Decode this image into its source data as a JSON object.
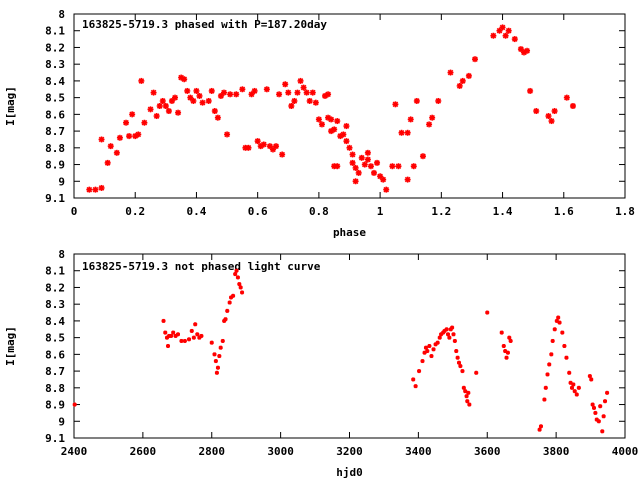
{
  "chart_data": [
    {
      "type": "scatter",
      "title": "163825-5719.3 phased with P=187.20day",
      "xlabel": "phase",
      "ylabel": "I[mag]",
      "xlim": [
        0,
        1.8
      ],
      "ylim": [
        9.1,
        8.0
      ],
      "y_inverted": true,
      "grid": false,
      "marker_color": "#ff0000",
      "x_ticks": [
        "0",
        "0.2",
        "0.4",
        "0.6",
        "0.8",
        "1",
        "1.2",
        "1.4",
        "1.6",
        "1.8"
      ],
      "y_ticks": [
        "8",
        "8.1",
        "8.2",
        "8.3",
        "8.4",
        "8.5",
        "8.6",
        "8.7",
        "8.8",
        "8.9",
        "9",
        "9.1"
      ],
      "series": [
        {
          "points": [
            [
              0.05,
              9.05
            ],
            [
              0.07,
              9.05
            ],
            [
              0.09,
              9.04
            ],
            [
              0.09,
              8.75
            ],
            [
              0.11,
              8.89
            ],
            [
              0.12,
              8.79
            ],
            [
              0.14,
              8.83
            ],
            [
              0.15,
              8.74
            ],
            [
              0.17,
              8.65
            ],
            [
              0.18,
              8.73
            ],
            [
              0.19,
              8.6
            ],
            [
              0.2,
              8.73
            ],
            [
              0.21,
              8.72
            ],
            [
              0.22,
              8.4
            ],
            [
              0.23,
              8.65
            ],
            [
              0.25,
              8.57
            ],
            [
              0.26,
              8.47
            ],
            [
              0.27,
              8.61
            ],
            [
              0.28,
              8.55
            ],
            [
              0.29,
              8.52
            ],
            [
              0.3,
              8.55
            ],
            [
              0.31,
              8.58
            ],
            [
              0.32,
              8.52
            ],
            [
              0.33,
              8.5
            ],
            [
              0.34,
              8.59
            ],
            [
              0.35,
              8.38
            ],
            [
              0.36,
              8.39
            ],
            [
              0.37,
              8.46
            ],
            [
              0.38,
              8.5
            ],
            [
              0.39,
              8.52
            ],
            [
              0.4,
              8.46
            ],
            [
              0.41,
              8.49
            ],
            [
              0.42,
              8.53
            ],
            [
              0.44,
              8.52
            ],
            [
              0.45,
              8.46
            ],
            [
              0.46,
              8.58
            ],
            [
              0.47,
              8.62
            ],
            [
              0.48,
              8.49
            ],
            [
              0.49,
              8.47
            ],
            [
              0.5,
              8.72
            ],
            [
              0.51,
              8.48
            ],
            [
              0.53,
              8.48
            ],
            [
              0.55,
              8.45
            ],
            [
              0.56,
              8.8
            ],
            [
              0.57,
              8.8
            ],
            [
              0.58,
              8.48
            ],
            [
              0.59,
              8.46
            ],
            [
              0.6,
              8.76
            ],
            [
              0.61,
              8.79
            ],
            [
              0.62,
              8.78
            ],
            [
              0.63,
              8.45
            ],
            [
              0.64,
              8.79
            ],
            [
              0.65,
              8.81
            ],
            [
              0.66,
              8.79
            ],
            [
              0.67,
              8.48
            ],
            [
              0.68,
              8.84
            ],
            [
              0.69,
              8.42
            ],
            [
              0.7,
              8.47
            ],
            [
              0.71,
              8.55
            ],
            [
              0.72,
              8.52
            ],
            [
              0.73,
              8.47
            ],
            [
              0.74,
              8.4
            ],
            [
              0.75,
              8.44
            ],
            [
              0.76,
              8.47
            ],
            [
              0.77,
              8.52
            ],
            [
              0.78,
              8.47
            ],
            [
              0.79,
              8.53
            ],
            [
              0.8,
              8.63
            ],
            [
              0.81,
              8.66
            ],
            [
              0.82,
              8.49
            ],
            [
              0.83,
              8.48
            ],
            [
              0.83,
              8.62
            ],
            [
              0.84,
              8.7
            ],
            [
              0.84,
              8.63
            ],
            [
              0.85,
              8.69
            ],
            [
              0.85,
              8.91
            ],
            [
              0.86,
              8.91
            ],
            [
              0.86,
              8.64
            ],
            [
              0.87,
              8.73
            ],
            [
              0.88,
              8.72
            ],
            [
              0.89,
              8.67
            ],
            [
              0.89,
              8.76
            ],
            [
              0.9,
              8.8
            ],
            [
              0.91,
              8.89
            ],
            [
              0.91,
              8.84
            ],
            [
              0.92,
              8.92
            ],
            [
              0.92,
              9.0
            ],
            [
              0.93,
              8.95
            ],
            [
              0.94,
              8.86
            ],
            [
              0.95,
              8.9
            ],
            [
              0.96,
              8.83
            ],
            [
              0.96,
              8.87
            ],
            [
              0.97,
              8.91
            ],
            [
              0.98,
              8.95
            ],
            [
              0.99,
              8.89
            ],
            [
              1.0,
              8.97
            ],
            [
              1.01,
              8.99
            ],
            [
              1.02,
              9.05
            ],
            [
              1.04,
              8.91
            ],
            [
              1.05,
              8.54
            ],
            [
              1.06,
              8.91
            ],
            [
              1.07,
              8.71
            ],
            [
              1.09,
              8.99
            ],
            [
              1.09,
              8.71
            ],
            [
              1.1,
              8.63
            ],
            [
              1.11,
              8.91
            ],
            [
              1.12,
              8.52
            ],
            [
              1.14,
              8.85
            ],
            [
              1.16,
              8.66
            ],
            [
              1.17,
              8.62
            ],
            [
              1.19,
              8.52
            ],
            [
              1.23,
              8.35
            ],
            [
              1.26,
              8.43
            ],
            [
              1.27,
              8.4
            ],
            [
              1.29,
              8.37
            ],
            [
              1.31,
              8.27
            ],
            [
              1.37,
              8.13
            ],
            [
              1.39,
              8.1
            ],
            [
              1.4,
              8.08
            ],
            [
              1.41,
              8.13
            ],
            [
              1.42,
              8.1
            ],
            [
              1.44,
              8.15
            ],
            [
              1.46,
              8.21
            ],
            [
              1.47,
              8.23
            ],
            [
              1.48,
              8.22
            ],
            [
              1.49,
              8.46
            ],
            [
              1.51,
              8.58
            ],
            [
              1.55,
              8.61
            ],
            [
              1.56,
              8.64
            ],
            [
              1.57,
              8.58
            ],
            [
              1.61,
              8.5
            ],
            [
              1.63,
              8.55
            ]
          ]
        }
      ]
    },
    {
      "type": "scatter",
      "title": "163825-5719.3 not phased light curve",
      "xlabel": "hjd0",
      "ylabel": "I[mag]",
      "xlim": [
        2400,
        4000
      ],
      "ylim": [
        9.1,
        8.0
      ],
      "y_inverted": true,
      "grid": false,
      "marker_color": "#ff0000",
      "x_ticks": [
        "2400",
        "2600",
        "2800",
        "3000",
        "3200",
        "3400",
        "3600",
        "3800",
        "4000"
      ],
      "y_ticks": [
        "8",
        "8.1",
        "8.2",
        "8.3",
        "8.4",
        "8.5",
        "8.6",
        "8.7",
        "8.8",
        "8.9",
        "9",
        "9.1"
      ],
      "series": [
        {
          "points": [
            [
              2402,
              8.9
            ],
            [
              2660,
              8.4
            ],
            [
              2665,
              8.47
            ],
            [
              2670,
              8.5
            ],
            [
              2673,
              8.55
            ],
            [
              2676,
              8.49
            ],
            [
              2682,
              8.49
            ],
            [
              2688,
              8.47
            ],
            [
              2695,
              8.49
            ],
            [
              2702,
              8.48
            ],
            [
              2712,
              8.52
            ],
            [
              2722,
              8.52
            ],
            [
              2734,
              8.51
            ],
            [
              2742,
              8.46
            ],
            [
              2748,
              8.5
            ],
            [
              2752,
              8.42
            ],
            [
              2758,
              8.48
            ],
            [
              2764,
              8.5
            ],
            [
              2770,
              8.49
            ],
            [
              2800,
              8.53
            ],
            [
              2808,
              8.6
            ],
            [
              2812,
              8.64
            ],
            [
              2815,
              8.71
            ],
            [
              2818,
              8.68
            ],
            [
              2822,
              8.61
            ],
            [
              2826,
              8.56
            ],
            [
              2832,
              8.52
            ],
            [
              2836,
              8.4
            ],
            [
              2840,
              8.39
            ],
            [
              2845,
              8.34
            ],
            [
              2852,
              8.29
            ],
            [
              2856,
              8.26
            ],
            [
              2862,
              8.25
            ],
            [
              2868,
              8.12
            ],
            [
              2872,
              8.1
            ],
            [
              2876,
              8.14
            ],
            [
              2880,
              8.18
            ],
            [
              2884,
              8.2
            ],
            [
              2888,
              8.23
            ],
            [
              3385,
              8.75
            ],
            [
              3392,
              8.79
            ],
            [
              3402,
              8.7
            ],
            [
              3412,
              8.64
            ],
            [
              3418,
              8.59
            ],
            [
              3422,
              8.56
            ],
            [
              3426,
              8.58
            ],
            [
              3432,
              8.55
            ],
            [
              3438,
              8.61
            ],
            [
              3444,
              8.57
            ],
            [
              3450,
              8.54
            ],
            [
              3456,
              8.53
            ],
            [
              3462,
              8.5
            ],
            [
              3466,
              8.48
            ],
            [
              3472,
              8.47
            ],
            [
              3476,
              8.46
            ],
            [
              3482,
              8.45
            ],
            [
              3486,
              8.48
            ],
            [
              3490,
              8.5
            ],
            [
              3494,
              8.45
            ],
            [
              3498,
              8.44
            ],
            [
              3502,
              8.48
            ],
            [
              3506,
              8.52
            ],
            [
              3510,
              8.58
            ],
            [
              3514,
              8.62
            ],
            [
              3518,
              8.65
            ],
            [
              3522,
              8.67
            ],
            [
              3528,
              8.7
            ],
            [
              3532,
              8.8
            ],
            [
              3536,
              8.82
            ],
            [
              3540,
              8.85
            ],
            [
              3542,
              8.88
            ],
            [
              3545,
              8.83
            ],
            [
              3548,
              8.9
            ],
            [
              3568,
              8.71
            ],
            [
              3600,
              8.35
            ],
            [
              3642,
              8.47
            ],
            [
              3648,
              8.55
            ],
            [
              3652,
              8.58
            ],
            [
              3656,
              8.62
            ],
            [
              3660,
              8.59
            ],
            [
              3664,
              8.5
            ],
            [
              3668,
              8.52
            ],
            [
              3752,
              9.05
            ],
            [
              3756,
              9.03
            ],
            [
              3766,
              8.87
            ],
            [
              3770,
              8.8
            ],
            [
              3775,
              8.72
            ],
            [
              3780,
              8.66
            ],
            [
              3786,
              8.6
            ],
            [
              3790,
              8.52
            ],
            [
              3796,
              8.45
            ],
            [
              3802,
              8.4
            ],
            [
              3806,
              8.38
            ],
            [
              3810,
              8.41
            ],
            [
              3818,
              8.47
            ],
            [
              3824,
              8.55
            ],
            [
              3830,
              8.62
            ],
            [
              3838,
              8.71
            ],
            [
              3842,
              8.77
            ],
            [
              3846,
              8.8
            ],
            [
              3850,
              8.78
            ],
            [
              3854,
              8.82
            ],
            [
              3860,
              8.84
            ],
            [
              3866,
              8.8
            ],
            [
              3898,
              8.73
            ],
            [
              3902,
              8.75
            ],
            [
              3906,
              8.9
            ],
            [
              3910,
              8.92
            ],
            [
              3914,
              8.95
            ],
            [
              3918,
              8.99
            ],
            [
              3924,
              9.0
            ],
            [
              3928,
              8.91
            ],
            [
              3934,
              9.06
            ],
            [
              3938,
              8.97
            ],
            [
              3942,
              8.88
            ],
            [
              3948,
              8.83
            ]
          ]
        }
      ]
    }
  ]
}
